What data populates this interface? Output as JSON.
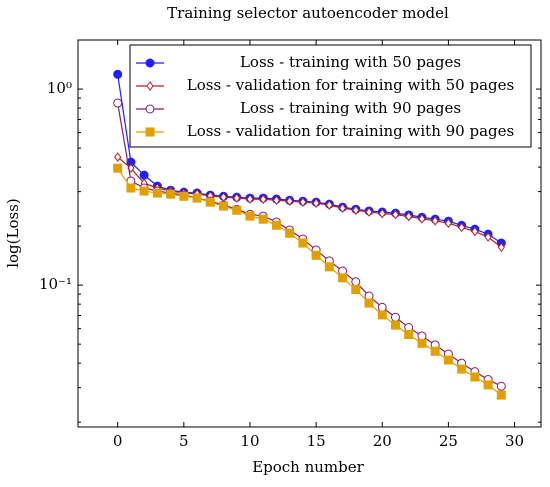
{
  "chart_data": {
    "type": "line",
    "title": "Training selector autoencoder model",
    "xlabel": "Epoch number",
    "ylabel": "log(Loss)",
    "log_y": true,
    "xlim": [
      -3,
      32
    ],
    "xticks": [
      0,
      5,
      10,
      15,
      20,
      25,
      30
    ],
    "ylim": [
      0.0189,
      1.78
    ],
    "yticks": [
      {
        "value": 0.1,
        "label": "10⁻¹"
      },
      {
        "value": 1,
        "label": "10⁰"
      }
    ],
    "yminorticks": [
      0.02,
      0.03,
      0.04,
      0.05,
      0.06,
      0.07,
      0.08,
      0.09,
      0.2,
      0.3,
      0.4,
      0.5,
      0.6,
      0.7,
      0.8,
      0.9
    ],
    "legend": "top-right",
    "x": [
      0,
      1,
      2,
      3,
      4,
      5,
      6,
      7,
      8,
      9,
      10,
      11,
      12,
      13,
      14,
      15,
      16,
      17,
      18,
      19,
      20,
      21,
      22,
      23,
      24,
      25,
      26,
      27,
      28,
      29
    ],
    "series": [
      {
        "name": "Loss - training with 50 pages",
        "color": "#1f1fff",
        "marker": "circle",
        "filled": true,
        "values": [
          1.19,
          0.424,
          0.364,
          0.32,
          0.305,
          0.298,
          0.295,
          0.288,
          0.284,
          0.281,
          0.278,
          0.278,
          0.275,
          0.271,
          0.268,
          0.265,
          0.259,
          0.25,
          0.244,
          0.239,
          0.236,
          0.233,
          0.228,
          0.222,
          0.217,
          0.212,
          0.202,
          0.193,
          0.182,
          0.164
        ]
      },
      {
        "name": "Loss - validation for training with 50 pages",
        "color": "#b22222",
        "marker": "diamond",
        "filled": false,
        "values": [
          0.45,
          0.395,
          0.331,
          0.313,
          0.302,
          0.295,
          0.292,
          0.285,
          0.281,
          0.278,
          0.275,
          0.274,
          0.271,
          0.268,
          0.265,
          0.262,
          0.256,
          0.247,
          0.241,
          0.236,
          0.232,
          0.229,
          0.224,
          0.218,
          0.213,
          0.207,
          0.197,
          0.188,
          0.176,
          0.156
        ]
      },
      {
        "name": "Loss - training with 90 pages",
        "color": "#8b1a6b",
        "marker": "circle",
        "filled": false,
        "values": [
          0.849,
          0.34,
          0.313,
          0.302,
          0.295,
          0.288,
          0.278,
          0.268,
          0.256,
          0.244,
          0.23,
          0.225,
          0.21,
          0.191,
          0.172,
          0.151,
          0.133,
          0.118,
          0.104,
          0.088,
          0.077,
          0.0686,
          0.0608,
          0.055,
          0.0496,
          0.0445,
          0.04,
          0.0362,
          0.033,
          0.0305
        ]
      },
      {
        "name": "Loss - validation for training with 90 pages",
        "color": "#e0a000",
        "marker": "square",
        "filled": true,
        "values": [
          0.395,
          0.313,
          0.302,
          0.295,
          0.291,
          0.284,
          0.278,
          0.265,
          0.253,
          0.241,
          0.225,
          0.217,
          0.202,
          0.184,
          0.164,
          0.142,
          0.124,
          0.109,
          0.095,
          0.081,
          0.0705,
          0.0625,
          0.056,
          0.0505,
          0.046,
          0.0415,
          0.0373,
          0.034,
          0.031,
          0.0275
        ]
      }
    ]
  }
}
